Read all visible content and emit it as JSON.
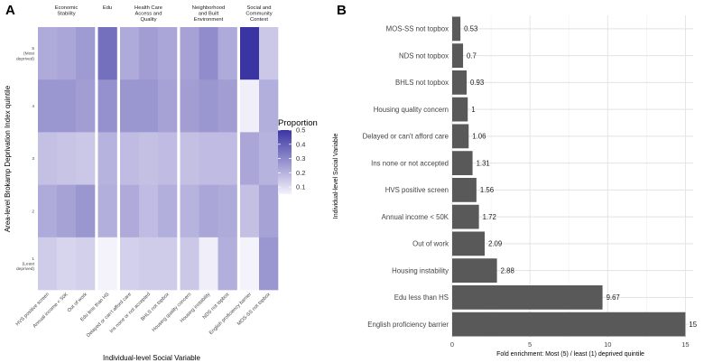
{
  "chart_data": [
    {
      "type": "heatmap",
      "panel_label": "A",
      "xlabel": "Individual-level Social Variable",
      "ylabel": "Area-level Brokamp Deprivation Index quintile",
      "legend_title": "Proportion",
      "legend_range": [
        0.05,
        0.5
      ],
      "legend_ticks": [
        "0.1",
        "0.2",
        "0.3",
        "0.4",
        "0.5"
      ],
      "color_low": "#f4f2fb",
      "color_high": "#3b35a3",
      "groups": [
        {
          "label": [
            "Economic",
            "Stability"
          ],
          "count": 3
        },
        {
          "label": [
            "Edu"
          ],
          "count": 1
        },
        {
          "label": [
            "Health Care",
            "Access and",
            "Quality"
          ],
          "count": 3
        },
        {
          "label": [
            "Neighborhood",
            "and Built",
            "Environment"
          ],
          "count": 3
        },
        {
          "label": [
            "Social and",
            "Community",
            "Context"
          ],
          "count": 2
        }
      ],
      "variables": [
        "HVS positive screen",
        "Annual income < 50K",
        "Out of work",
        "Edu less than HS",
        "Delayed or can't afford care",
        "Ins none or not accepted",
        "BHLS not topbox",
        "Housing quality concern",
        "Housing instability",
        "NDS not topbox",
        "English proficiency barrier",
        "MOS-SS not topbox"
      ],
      "quintiles": [
        {
          "label": [
            "5",
            "(Most",
            "deprived)"
          ],
          "values": [
            0.22,
            0.23,
            0.26,
            0.36,
            0.22,
            0.25,
            0.23,
            0.24,
            0.29,
            0.22,
            0.5,
            0.15
          ]
        },
        {
          "label": [
            "4"
          ],
          "values": [
            0.27,
            0.27,
            0.25,
            0.28,
            0.27,
            0.27,
            0.24,
            0.25,
            0.27,
            0.25,
            0.06,
            0.21
          ]
        },
        {
          "label": [
            "3"
          ],
          "values": [
            0.17,
            0.16,
            0.15,
            0.2,
            0.18,
            0.17,
            0.18,
            0.17,
            0.18,
            0.18,
            0.23,
            0.2
          ]
        },
        {
          "label": [
            "2"
          ],
          "values": [
            0.22,
            0.24,
            0.27,
            0.21,
            0.22,
            0.18,
            0.21,
            0.2,
            0.23,
            0.22,
            0.17,
            0.24
          ]
        },
        {
          "label": [
            "1",
            "(Least",
            "deprived)"
          ],
          "values": [
            0.14,
            0.12,
            0.13,
            0.05,
            0.13,
            0.14,
            0.14,
            0.15,
            0.06,
            0.21,
            0.05,
            0.27
          ]
        }
      ]
    },
    {
      "type": "bar",
      "orientation": "horizontal",
      "panel_label": "B",
      "xlabel": "Fold enrichment: Most (5) / least (1) deprived quintile",
      "ylabel": "Individual-level Social Variable",
      "xlim": [
        0,
        15.5
      ],
      "xticks": [
        0,
        5,
        10,
        15
      ],
      "bar_color": "#595959",
      "categories": [
        "MOS-SS not topbox",
        "NDS not topbox",
        "BHLS not topbox",
        "Housing quality concern",
        "Delayed or can't afford care",
        "Ins none or not accepted",
        "HVS positive screen",
        "Annual income < 50K",
        "Out of work",
        "Housing instability",
        "Edu less than HS",
        "English proficiency barrier"
      ],
      "values": [
        0.53,
        0.7,
        0.93,
        1,
        1.06,
        1.31,
        1.56,
        1.72,
        2.09,
        2.88,
        9.67,
        15
      ],
      "value_labels": [
        "0.53",
        "0.7",
        "0.93",
        "1",
        "1.06",
        "1.31",
        "1.56",
        "1.72",
        "2.09",
        "2.88",
        "9.67",
        "15"
      ]
    }
  ]
}
